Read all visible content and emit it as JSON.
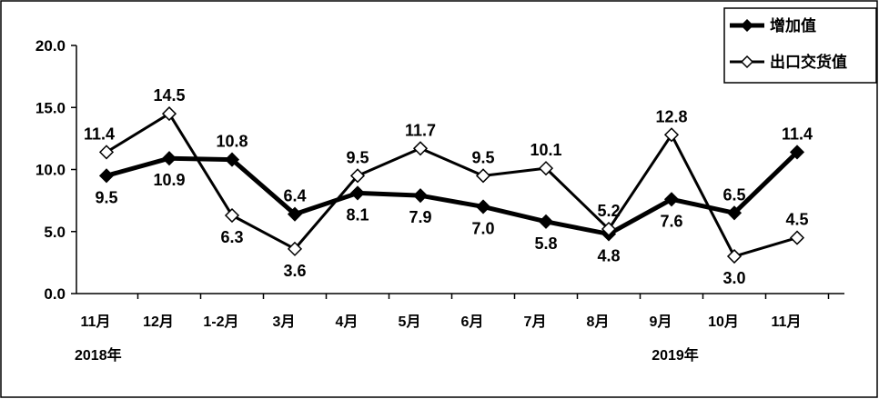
{
  "chart_data": {
    "type": "line",
    "categories": [
      "11月",
      "12月",
      "1-2月",
      "3月",
      "4月",
      "5月",
      "6月",
      "7月",
      "8月",
      "9月",
      "10月",
      "11月"
    ],
    "year_labels": [
      "2018年",
      "2019年"
    ],
    "series": [
      {
        "name": "增加值",
        "marker": "filled-diamond",
        "color": "#000000",
        "values": [
          9.5,
          10.9,
          10.8,
          6.4,
          8.1,
          7.9,
          7.0,
          5.8,
          4.8,
          7.6,
          6.5,
          11.4
        ],
        "labels": [
          "9.5",
          "10.9",
          "10.8",
          "6.4",
          "8.1",
          "7.9",
          "7.0",
          "5.8",
          "4.8",
          "7.6",
          "6.5",
          "11.4"
        ]
      },
      {
        "name": "出口交货值",
        "marker": "hollow-diamond",
        "color": "#000000",
        "values": [
          11.4,
          14.5,
          6.3,
          3.6,
          9.5,
          11.7,
          9.5,
          10.1,
          5.2,
          12.8,
          3.0,
          4.5
        ],
        "labels": [
          "11.4",
          "14.5",
          "6.3",
          "3.6",
          "9.5",
          "11.7",
          "9.5",
          "10.1",
          "5.2",
          "12.8",
          "3.0",
          "4.5"
        ]
      }
    ],
    "ylim": [
      0,
      20
    ],
    "yticks": [
      "0.0",
      "5.0",
      "10.0",
      "15.0",
      "20.0"
    ],
    "grid": false,
    "legend_position": "top-right"
  }
}
